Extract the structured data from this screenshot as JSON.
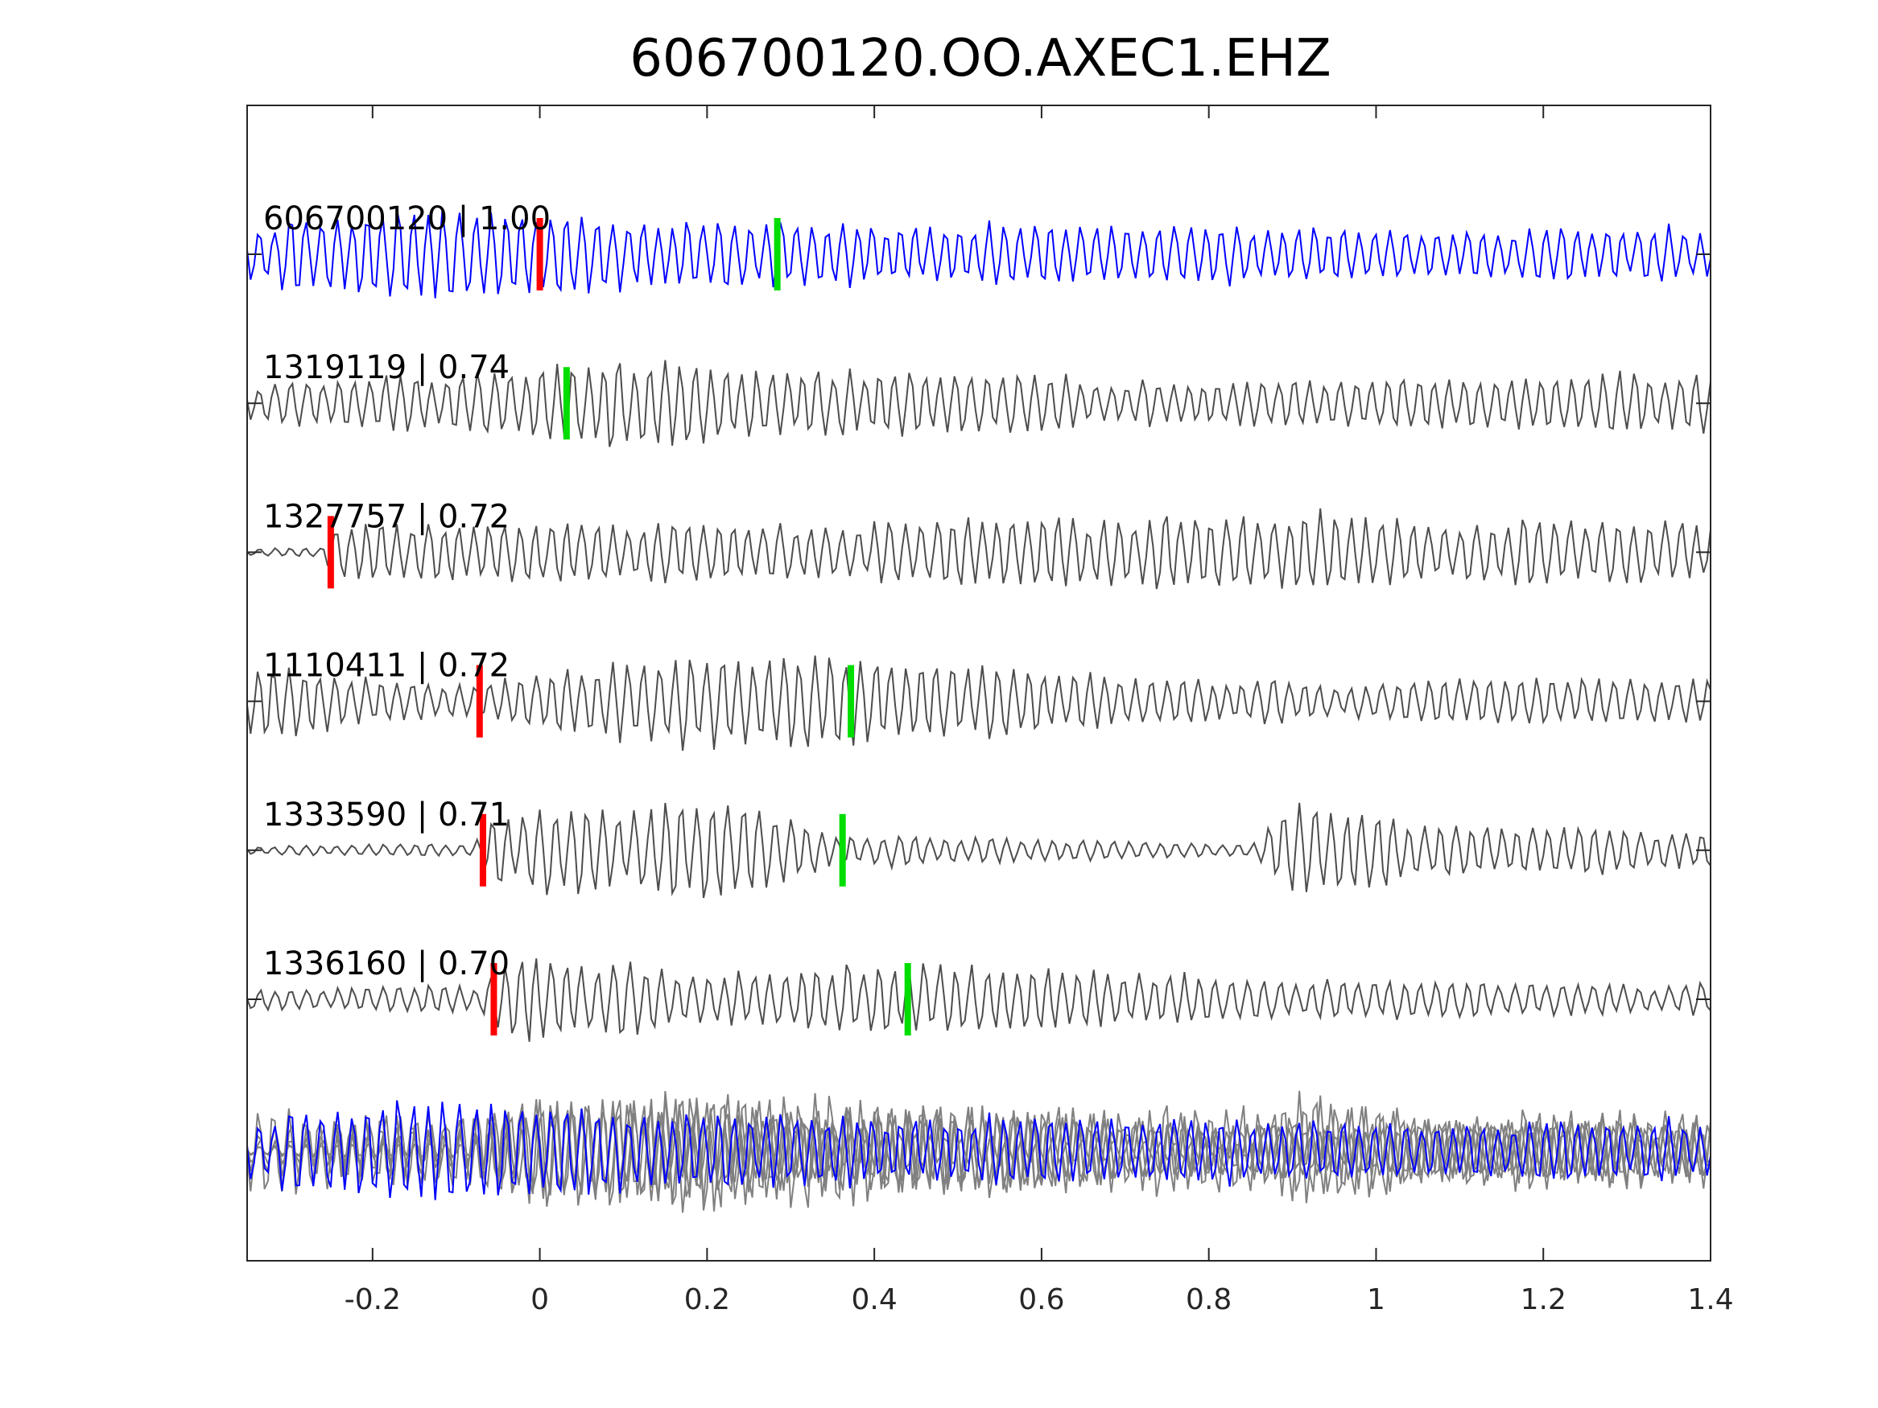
{
  "chart_data": {
    "type": "line",
    "title": "606700120.OO.AXEC1.EHZ",
    "xlabel": "",
    "ylabel": "",
    "xlim": [
      -0.35,
      1.4
    ],
    "xticks": [
      {
        "value": -0.2,
        "label": "-0.2"
      },
      {
        "value": 0,
        "label": "0"
      },
      {
        "value": 0.2,
        "label": "0.2"
      },
      {
        "value": 0.4,
        "label": "0.4"
      },
      {
        "value": 0.6,
        "label": "0.6"
      },
      {
        "value": 0.8,
        "label": "0.8"
      },
      {
        "value": 1.0,
        "label": "1"
      },
      {
        "value": 1.2,
        "label": "1.2"
      },
      {
        "value": 1.4,
        "label": "1.4"
      }
    ],
    "grid": false,
    "legend": "none",
    "colors": {
      "template": "#0000ff",
      "match": "#4d4d4d",
      "stack": "#808080",
      "p_pick": "#ff0000",
      "s_pick": "#00dd00",
      "axis": "#262626"
    },
    "traces": [
      {
        "label": "606700120 | 1.00",
        "id": "606700120",
        "cc": 1.0,
        "p_pick": 0.0,
        "s_pick": 0.284,
        "template": true,
        "seed": 11,
        "envelope": [
          [
            -0.35,
            0.55
          ],
          [
            -0.2,
            0.9
          ],
          [
            0.0,
            0.75
          ],
          [
            0.3,
            0.6
          ],
          [
            0.8,
            0.55
          ],
          [
            1.4,
            0.5
          ]
        ]
      },
      {
        "label": "1319119 | 0.74",
        "id": "1319119",
        "cc": 0.74,
        "p_pick": null,
        "s_pick": 0.032,
        "template": false,
        "seed": 23,
        "envelope": [
          [
            -0.35,
            0.35
          ],
          [
            -0.1,
            0.6
          ],
          [
            0.1,
            0.95
          ],
          [
            0.3,
            0.7
          ],
          [
            0.8,
            0.4
          ],
          [
            1.4,
            0.6
          ]
        ]
      },
      {
        "label": "1327757 | 0.72",
        "id": "1327757",
        "cc": 0.72,
        "p_pick": -0.25,
        "s_pick": null,
        "template": false,
        "seed": 37,
        "envelope": [
          [
            -0.35,
            0.08
          ],
          [
            -0.26,
            0.1
          ],
          [
            -0.24,
            0.6
          ],
          [
            0.2,
            0.55
          ],
          [
            0.8,
            0.7
          ],
          [
            1.4,
            0.6
          ]
        ]
      },
      {
        "label": "1110411 | 0.72",
        "id": "1110411",
        "cc": 0.72,
        "p_pick": -0.072,
        "s_pick": 0.372,
        "template": false,
        "seed": 41,
        "envelope": [
          [
            -0.35,
            0.7
          ],
          [
            -0.1,
            0.35
          ],
          [
            0.2,
            0.95
          ],
          [
            0.4,
            0.8
          ],
          [
            0.8,
            0.4
          ],
          [
            1.4,
            0.45
          ]
        ]
      },
      {
        "label": "1333590 | 0.71",
        "id": "1333590",
        "cc": 0.71,
        "p_pick": -0.068,
        "s_pick": 0.362,
        "template": false,
        "seed": 53,
        "envelope": [
          [
            -0.35,
            0.1
          ],
          [
            -0.08,
            0.12
          ],
          [
            -0.05,
            0.7
          ],
          [
            0.2,
            0.9
          ],
          [
            0.36,
            0.35
          ],
          [
            0.85,
            0.1
          ],
          [
            0.9,
            0.9
          ],
          [
            1.1,
            0.6
          ],
          [
            1.4,
            0.35
          ]
        ]
      },
      {
        "label": "1336160 | 0.70",
        "id": "1336160",
        "cc": 0.7,
        "p_pick": -0.055,
        "s_pick": 0.44,
        "template": false,
        "seed": 67,
        "envelope": [
          [
            -0.35,
            0.2
          ],
          [
            -0.07,
            0.3
          ],
          [
            -0.04,
            0.85
          ],
          [
            0.2,
            0.55
          ],
          [
            0.45,
            0.7
          ],
          [
            0.8,
            0.4
          ],
          [
            1.4,
            0.3
          ]
        ]
      }
    ],
    "stack": {
      "description_count": 6,
      "envelope": [
        [
          -0.35,
          0.6
        ],
        [
          -0.2,
          0.8
        ],
        [
          0.0,
          0.85
        ],
        [
          0.25,
          0.75
        ],
        [
          0.5,
          0.55
        ],
        [
          0.8,
          0.45
        ],
        [
          1.4,
          0.45
        ]
      ]
    }
  }
}
